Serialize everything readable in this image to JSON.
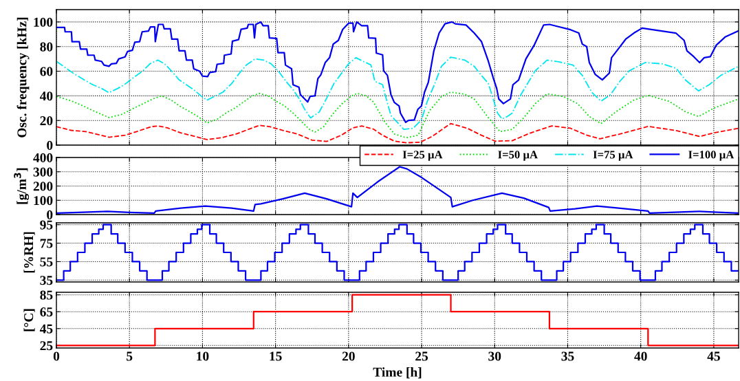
{
  "chart_data": [
    {
      "type": "line",
      "ylabel": "Osc. frequency [kHz]",
      "xlim": [
        0,
        46.7
      ],
      "ylim": [
        0,
        110
      ],
      "yticks": [
        0,
        20,
        40,
        60,
        80,
        100
      ],
      "grid": true,
      "legend": "bottom right",
      "tick_labels": "y",
      "series": [
        {
          "name": "I=25 µA",
          "color": "#ff0000",
          "line_style": "dashed",
          "x": [
            0,
            1,
            2,
            3.6,
            4.7,
            5.5,
            6.5,
            7,
            7.6,
            8.5,
            9.5,
            10.3,
            11.3,
            12.3,
            13.2,
            13.9,
            14.6,
            15.5,
            16.5,
            17.5,
            18.5,
            19.5,
            20.3,
            20.9,
            21.7,
            22.33,
            23.14,
            23.95,
            24.9,
            25.71,
            26.99,
            28.12,
            29.09,
            30.04,
            31.2,
            32.46,
            33.91,
            35.19,
            36.32,
            37.2,
            38.57,
            40.5,
            42.43,
            44.04,
            45,
            46.7
          ],
          "values": [
            15,
            12,
            11,
            6.4,
            8,
            11,
            15,
            15.5,
            14,
            10,
            7,
            4.5,
            6,
            9,
            13,
            16,
            15,
            12,
            9,
            4,
            3,
            8,
            14,
            15.5,
            13,
            8,
            3.2,
            1.9,
            2.3,
            7,
            17.5,
            13.7,
            8,
            3.2,
            3.6,
            9.9,
            15.6,
            13.7,
            8,
            5.1,
            9,
            15.2,
            11.8,
            7,
            9.9,
            13.7
          ]
        },
        {
          "name": "I=50 µA",
          "color": "#00dd00",
          "line_style": "dotted",
          "x": [
            0,
            1,
            1.8,
            2.5,
            3.6,
            4.5,
            5.3,
            6,
            6.7,
            7.2,
            7.8,
            8.4,
            9,
            9.6,
            10.3,
            11,
            11.6,
            12.2,
            12.8,
            13.4,
            13.9,
            14.5,
            15,
            15.6,
            16.2,
            16.8,
            17.3,
            17.7,
            18.3,
            18.9,
            19.5,
            20.2,
            20.6,
            21.2,
            21.7,
            22.5,
            23.14,
            23.95,
            24.76,
            25.55,
            26.36,
            26.99,
            27.96,
            28.6,
            29.57,
            30.36,
            31.2,
            32,
            32.78,
            33.59,
            34.71,
            35.68,
            36.48,
            37.28,
            38.41,
            39.54,
            40.5,
            41.94,
            43.07,
            43.96,
            45,
            46.7
          ],
          "values": [
            39.5,
            36,
            32,
            28,
            22.4,
            25,
            30,
            34,
            38,
            40,
            37,
            32,
            28,
            24,
            18,
            21,
            26,
            30,
            35,
            40,
            42,
            40,
            36,
            32,
            26,
            19,
            13,
            10.6,
            15,
            25,
            33,
            40,
            42,
            40,
            35,
            18.5,
            9,
            6,
            8,
            28,
            39.4,
            43,
            41.3,
            37.5,
            22.3,
            10.9,
            12.8,
            22.3,
            33.7,
            41.7,
            39.4,
            33.7,
            23.2,
            17.5,
            28,
            36.6,
            40.4,
            35.6,
            27,
            23.2,
            30,
            37.5
          ]
        },
        {
          "name": "I=75 µA",
          "color": "#00e5ee",
          "line_style": "dashdot",
          "x": [
            0,
            0.6,
            1.2,
            1.9,
            2.5,
            3.1,
            3.6,
            4.2,
            4.7,
            5.3,
            5.9,
            6.4,
            6.95,
            7.4,
            7.9,
            8.4,
            8.9,
            9.4,
            9.9,
            10.3,
            10.9,
            11.4,
            12,
            12.5,
            13,
            13.6,
            14.2,
            14.7,
            15.2,
            15.7,
            16.2,
            16.6,
            17,
            17.4,
            18,
            18.5,
            19,
            19.5,
            20,
            20.5,
            21,
            21.53,
            21.8,
            22.33,
            22.5,
            22.9,
            23.78,
            24.42,
            24.99,
            25.39,
            25.87,
            26.36,
            26.99,
            27.96,
            28.6,
            29.09,
            29.57,
            30.2,
            30.5,
            30.86,
            31.2,
            31.8,
            32.78,
            33.59,
            34.39,
            35.36,
            36,
            36.64,
            37.28,
            37.93,
            38.57,
            39.22,
            40.3,
            41.47,
            42.43,
            43.07,
            43.96,
            44.68,
            45.48,
            46.7
          ],
          "values": [
            68,
            63,
            58,
            53,
            49,
            46,
            42.6,
            46,
            49.5,
            55,
            60,
            66,
            69,
            66,
            60,
            53,
            49,
            45,
            40,
            36.5,
            40,
            43,
            50,
            58,
            65,
            70,
            69,
            66,
            60,
            52,
            45,
            38,
            29,
            22,
            27,
            38,
            50,
            58,
            66,
            71,
            68,
            65.1,
            51.8,
            49,
            41,
            24,
            12.8,
            13.7,
            20.4,
            35.6,
            49,
            64,
            71.4,
            69,
            64,
            56.6,
            50,
            26,
            21.3,
            23.2,
            26,
            41,
            60.4,
            69,
            67.6,
            65,
            56.6,
            43,
            35.6,
            41,
            51.8,
            60.4,
            67,
            66,
            62.3,
            52.8,
            44,
            49,
            56.6,
            64
          ]
        },
        {
          "name": "I=100 µA",
          "color": "#0000ee",
          "line_style": "solid",
          "x": [
            0,
            0.56,
            0.6,
            1.03,
            1.07,
            1.57,
            1.65,
            2.08,
            2.15,
            2.58,
            2.66,
            3.09,
            3.26,
            3.6,
            3.77,
            4.1,
            4.27,
            4.7,
            4.87,
            5.2,
            5.37,
            5.7,
            5.87,
            6.3,
            6.44,
            6.73,
            6.77,
            6.98,
            7.3,
            7.38,
            7.8,
            7.9,
            8.3,
            8.4,
            8.8,
            8.9,
            9.3,
            9.4,
            9.8,
            10,
            10.35,
            10.5,
            10.9,
            11,
            11.45,
            11.5,
            11.96,
            12.05,
            12.47,
            12.64,
            13.06,
            13.14,
            13.48,
            13.56,
            13.65,
            13.99,
            14.15,
            14.5,
            14.58,
            15.08,
            15.17,
            15.6,
            15.68,
            16.1,
            16.2,
            16.6,
            16.7,
            17.2,
            17.37,
            17.7,
            17.9,
            18.1,
            18.4,
            18.7,
            18.95,
            19.3,
            19.6,
            20,
            20.3,
            20.34,
            20.56,
            20.9,
            21.3,
            21.38,
            21.85,
            21.9,
            22.33,
            22.4,
            22.66,
            22.9,
            23.13,
            23.46,
            23.55,
            23.91,
            24.1,
            24.5,
            24.74,
            24.99,
            25.2,
            25.46,
            25.84,
            26.2,
            26.6,
            27.08,
            27.3,
            28.04,
            28.6,
            29.1,
            29.57,
            29.9,
            30.14,
            30.28,
            30.6,
            31.08,
            31.25,
            31.64,
            32.14,
            32.7,
            33.35,
            33.76,
            34.22,
            35.19,
            35.76,
            36,
            36.3,
            36.48,
            36.88,
            37.37,
            37.85,
            38,
            38.49,
            38.97,
            39.53,
            40.1,
            40.8,
            42.4,
            42.97,
            43.16,
            43.63,
            44.03,
            44.35,
            44.76,
            45.16,
            45.8,
            46.7
          ],
          "values": [
            95.6,
            95.6,
            92,
            92,
            84,
            84,
            78,
            78,
            73,
            73,
            69,
            68,
            65,
            64,
            66,
            66.4,
            70,
            71.6,
            76,
            77,
            83.6,
            84,
            92,
            92.6,
            96,
            96,
            84,
            98,
            98,
            94.4,
            94.4,
            86,
            86,
            76.6,
            76.6,
            69,
            69,
            62,
            60,
            56,
            55.6,
            59,
            59.6,
            65.6,
            66.4,
            73,
            74,
            84.4,
            85.6,
            94,
            95,
            98,
            98,
            87,
            98,
            100,
            97,
            97,
            87,
            86.6,
            75,
            75,
            65,
            62,
            49,
            47,
            41,
            35,
            39.6,
            40,
            54,
            57,
            67,
            71,
            82,
            85,
            94,
            99,
            99,
            92,
            100,
            97,
            97,
            87,
            86.7,
            74.7,
            73.3,
            60.4,
            56.6,
            41,
            34.7,
            31.8,
            26,
            18.5,
            20,
            20.4,
            29,
            31.8,
            43,
            51,
            76.6,
            91,
            98.5,
            100,
            98.5,
            97.5,
            91,
            84,
            68,
            54.7,
            46,
            37.5,
            33.7,
            37.5,
            49,
            52.8,
            70,
            81,
            97.5,
            98,
            96.6,
            93.7,
            91,
            82,
            80,
            67,
            57.5,
            53,
            58.5,
            71,
            78.5,
            86,
            91,
            95,
            93.7,
            91,
            85,
            76.6,
            71.8,
            67,
            71,
            71.8,
            81,
            88,
            92.8
          ]
        }
      ]
    },
    {
      "type": "line",
      "ylabel": "[g/m$^{3}$]",
      "xlim": [
        0,
        46.7
      ],
      "ylim": [
        0,
        400
      ],
      "yticks": [
        0,
        100,
        200,
        300,
        400
      ],
      "grid": true,
      "tick_labels": "y",
      "series": [
        {
          "color": "#0000ee",
          "line_style": "solid",
          "x": [
            0,
            1.5,
            3.5,
            5,
            6.7,
            6.8,
            8.5,
            10.2,
            12,
            13.5,
            13.6,
            14,
            15.5,
            17,
            18.5,
            20.2,
            20.3,
            20.6,
            22,
            23.5,
            24,
            25,
            27,
            27.1,
            28.5,
            30.5,
            32,
            33.7,
            33.8,
            35.5,
            37,
            38.5,
            40.5,
            40.6,
            42,
            44,
            45,
            46.7
          ],
          "values": [
            10,
            15,
            22,
            15,
            10,
            25,
            45,
            60,
            45,
            25,
            70,
            75,
            110,
            150,
            110,
            55,
            150,
            120,
            230,
            335,
            320,
            260,
            120,
            55,
            100,
            150,
            115,
            50,
            25,
            40,
            60,
            45,
            25,
            10,
            15,
            22,
            18,
            10
          ]
        }
      ]
    },
    {
      "type": "step",
      "ylabel": "[%RH]",
      "xlim": [
        0,
        46.7
      ],
      "ylim": [
        33,
        97
      ],
      "yticks": [
        35,
        55,
        75,
        95
      ],
      "grid": true,
      "tick_labels": "y",
      "series": [
        {
          "color": "#0000ee",
          "line_style": "solid",
          "x": [
            0,
            0.5,
            0.95,
            1.45,
            1.95,
            2.45,
            2.9,
            3.2,
            3.75,
            4.2,
            4.7,
            5.2,
            5.7,
            6.2,
            6.75,
            7.25,
            7.7,
            8.2,
            8.7,
            9.2,
            9.65,
            9.95,
            10.5,
            10.95,
            11.45,
            11.95,
            12.45,
            12.95,
            13.5,
            14,
            14.45,
            14.95,
            15.45,
            15.95,
            16.4,
            16.7,
            17.25,
            17.7,
            18.2,
            18.7,
            19.2,
            19.7,
            20.25,
            20.75,
            21.2,
            21.7,
            22.2,
            22.7,
            23.15,
            23.45,
            24,
            24.45,
            24.95,
            25.45,
            25.95,
            26.45,
            27,
            27.5,
            27.95,
            28.45,
            28.95,
            29.45,
            29.9,
            30.2,
            30.75,
            31.2,
            31.7,
            32.2,
            32.7,
            33.2,
            33.75,
            34.25,
            34.7,
            35.2,
            35.7,
            36.2,
            36.65,
            36.95,
            37.5,
            37.95,
            38.45,
            38.95,
            39.45,
            39.95,
            40.5,
            41,
            41.45,
            41.95,
            42.45,
            42.95,
            43.4,
            43.7,
            44.25,
            44.7,
            45.2,
            45.7,
            46.2,
            46.7
          ],
          "values": [
            35,
            45,
            55,
            65,
            75,
            85,
            90,
            95,
            85,
            75,
            65,
            55,
            45,
            35,
            35,
            45,
            55,
            65,
            75,
            85,
            90,
            95,
            85,
            75,
            65,
            55,
            45,
            35,
            35,
            45,
            55,
            65,
            75,
            85,
            90,
            95,
            85,
            75,
            65,
            55,
            45,
            35,
            35,
            45,
            55,
            65,
            75,
            85,
            90,
            95,
            85,
            75,
            65,
            55,
            45,
            35,
            35,
            45,
            55,
            65,
            75,
            85,
            90,
            95,
            85,
            75,
            65,
            55,
            45,
            35,
            35,
            45,
            55,
            65,
            75,
            85,
            90,
            95,
            85,
            75,
            65,
            55,
            45,
            35,
            35,
            45,
            55,
            65,
            75,
            85,
            90,
            95,
            85,
            75,
            65,
            55,
            45,
            45
          ]
        }
      ]
    },
    {
      "type": "step",
      "ylabel": "[°C]",
      "xlabel": "Time [h]",
      "xlim": [
        0,
        46.7
      ],
      "xticks": [
        0,
        5,
        10,
        15,
        20,
        25,
        30,
        35,
        40,
        45
      ],
      "ylim": [
        22,
        88
      ],
      "yticks": [
        25,
        45,
        65,
        85
      ],
      "grid": true,
      "series": [
        {
          "color": "#ff0000",
          "line_style": "solid",
          "x": [
            0,
            6.75,
            13.5,
            20.25,
            27,
            33.75,
            40.5,
            46.7
          ],
          "values": [
            25,
            45,
            65,
            85,
            65,
            45,
            25,
            25
          ]
        }
      ]
    }
  ]
}
